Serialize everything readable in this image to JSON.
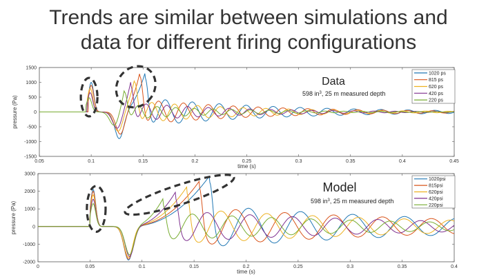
{
  "slide": {
    "title_line1": "Trends are similar between simulations and",
    "title_line2": "data for different firing configurations"
  },
  "chart_data": [
    {
      "type": "line",
      "title": "Data",
      "annotation": {
        "prefix": "598 in",
        "superscript": "3",
        "suffix": ", 25 m measured depth"
      },
      "xlabel": "time (s)",
      "ylabel": "pressure (Pa)",
      "xlim": [
        0.05,
        0.45
      ],
      "ylim": [
        -1500,
        1500
      ],
      "xticks": [
        0.05,
        0.1,
        0.15,
        0.2,
        0.25,
        0.3,
        0.35,
        0.4,
        0.45
      ],
      "xtick_labels": [
        "0.05",
        "0.1",
        "0.15",
        "0.2",
        "0.25",
        "0.3",
        "0.35",
        "0.4",
        "0.45"
      ],
      "yticks": [
        -1500,
        -1000,
        -500,
        0,
        500,
        1000,
        1500
      ],
      "ytick_labels": [
        "-1500",
        "-1000",
        "-500",
        "0",
        "500",
        "1000",
        "1500"
      ],
      "legend_position": "top-right",
      "series": [
        {
          "name": "1020 ps",
          "color": "#1f77b4",
          "onset": 0.097,
          "first_peak": 1000,
          "second_peak_x": 0.152,
          "second_peak": 1150,
          "trough_x": 0.127,
          "trough": -900,
          "period": 0.026,
          "tail_amp": 480,
          "decay": 0.13
        },
        {
          "name": "815 ps",
          "color": "#d95319",
          "onset": 0.097,
          "first_peak": 900,
          "second_peak_x": 0.147,
          "second_peak": 1200,
          "trough_x": 0.128,
          "trough": -750,
          "period": 0.024,
          "tail_amp": 430,
          "decay": 0.12
        },
        {
          "name": "620 ps",
          "color": "#edb120",
          "onset": 0.096,
          "first_peak": 800,
          "second_peak_x": 0.142,
          "second_peak": 1000,
          "trough_x": 0.126,
          "trough": -650,
          "period": 0.022,
          "tail_amp": 380,
          "decay": 0.11
        },
        {
          "name": "420 ps",
          "color": "#7e2f8e",
          "onset": 0.096,
          "first_peak": 650,
          "second_peak_x": 0.138,
          "second_peak": 900,
          "trough_x": 0.125,
          "trough": -550,
          "period": 0.02,
          "tail_amp": 320,
          "decay": 0.1
        },
        {
          "name": "220 ps",
          "color": "#77ac30",
          "onset": 0.095,
          "first_peak": 480,
          "second_peak_x": 0.132,
          "second_peak": 700,
          "trough_x": 0.122,
          "trough": -450,
          "period": 0.018,
          "tail_amp": 260,
          "decay": 0.09
        }
      ],
      "highlights": [
        {
          "cx": 0.098,
          "cy": 500,
          "rx": 0.008,
          "ry": 1300
        },
        {
          "cx": 0.143,
          "cy": 850,
          "rx": 0.018,
          "ry": 1450
        }
      ]
    },
    {
      "type": "line",
      "title": "Model",
      "annotation": {
        "prefix": "598 in",
        "superscript": "3",
        "suffix": ", 25 m measured depth"
      },
      "xlabel": "time (s)",
      "ylabel": "pressure (Pa)",
      "xlim": [
        0,
        0.4
      ],
      "ylim": [
        -2000,
        3000
      ],
      "xticks": [
        0,
        0.05,
        0.1,
        0.15,
        0.2,
        0.25,
        0.3,
        0.35,
        0.4
      ],
      "xtick_labels": [
        "0",
        "0.05",
        "0.1",
        "0.15",
        "0.2",
        "0.25",
        "0.3",
        "0.35",
        "0.4"
      ],
      "yticks": [
        -2000,
        -1000,
        0,
        1000,
        2000,
        3000
      ],
      "ytick_labels": [
        "-2000",
        "-1000",
        "0",
        "1000",
        "2000",
        "3000"
      ],
      "legend_position": "top-right",
      "series": [
        {
          "name": "1020psi",
          "color": "#1f77b4",
          "onset": 0.05,
          "first_peak": 2100,
          "second_peak_x": 0.165,
          "second_peak": 2500,
          "trough_x": 0.087,
          "trough": -1900,
          "period": 0.05,
          "tail_amp": 1200,
          "decay": 0.25
        },
        {
          "name": "815psi",
          "color": "#d95319",
          "onset": 0.05,
          "first_peak": 2000,
          "second_peak_x": 0.155,
          "second_peak": 2200,
          "trough_x": 0.087,
          "trough": -1850,
          "period": 0.047,
          "tail_amp": 1100,
          "decay": 0.25
        },
        {
          "name": "620psi",
          "color": "#edb120",
          "onset": 0.05,
          "first_peak": 1800,
          "second_peak_x": 0.143,
          "second_peak": 1900,
          "trough_x": 0.087,
          "trough": -1750,
          "period": 0.044,
          "tail_amp": 1000,
          "decay": 0.25
        },
        {
          "name": "420psi",
          "color": "#7e2f8e",
          "onset": 0.05,
          "first_peak": 1550,
          "second_peak_x": 0.132,
          "second_peak": 1600,
          "trough_x": 0.088,
          "trough": -1700,
          "period": 0.041,
          "tail_amp": 900,
          "decay": 0.24
        },
        {
          "name": "220psi",
          "color": "#77ac30",
          "onset": 0.05,
          "first_peak": 1300,
          "second_peak_x": 0.12,
          "second_peak": 1250,
          "trough_x": 0.088,
          "trough": -1600,
          "period": 0.038,
          "tail_amp": 800,
          "decay": 0.23
        }
      ],
      "highlights": [
        {
          "cx": 0.056,
          "cy": 1000,
          "rx": 0.009,
          "ry": 2600
        },
        {
          "cx": 0.136,
          "cy": 1800,
          "rx": 0.055,
          "ry": 1100
        }
      ]
    }
  ]
}
